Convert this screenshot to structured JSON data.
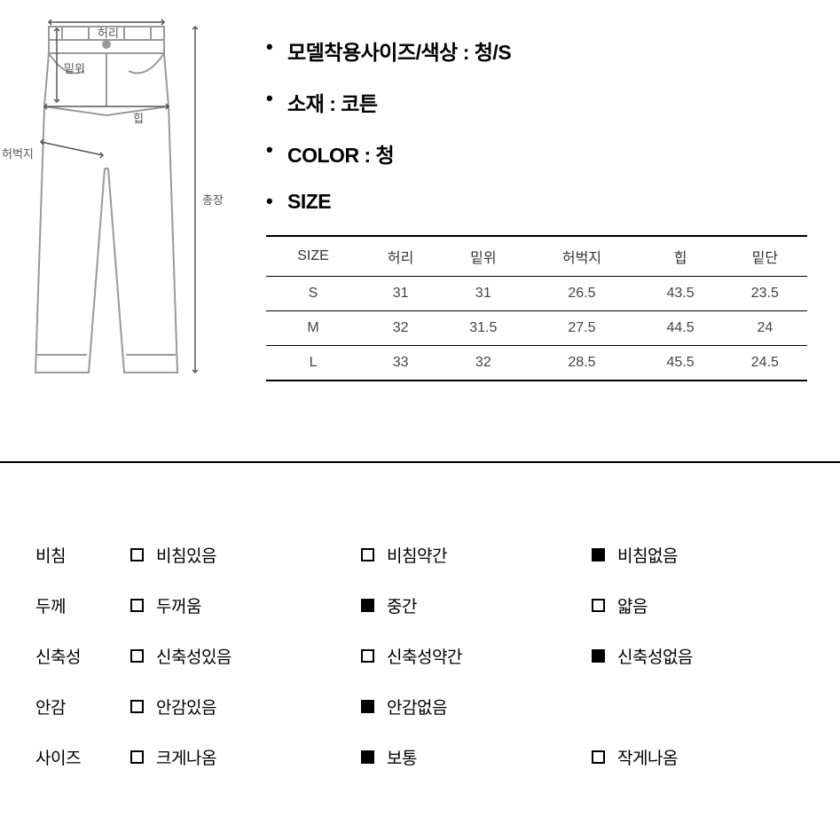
{
  "diagram": {
    "labels": {
      "waist": "허리",
      "rise": "밑위",
      "hip": "힙",
      "thigh": "허벅지",
      "length": "총장"
    },
    "stroke": "#888888",
    "arrow": "#555555"
  },
  "info": {
    "bullets": [
      "모델착용사이즈/색상 : 청/S",
      "소재 : 코튼",
      "COLOR : 청",
      "SIZE"
    ]
  },
  "sizeTable": {
    "columns": [
      "SIZE",
      "허리",
      "밑위",
      "허벅지",
      "힙",
      "밑단"
    ],
    "rows": [
      [
        "S",
        "31",
        "31",
        "26.5",
        "43.5",
        "23.5"
      ],
      [
        "M",
        "32",
        "31.5",
        "27.5",
        "44.5",
        "24"
      ],
      [
        "L",
        "33",
        "32",
        "28.5",
        "45.5",
        "24.5"
      ]
    ]
  },
  "attributes": [
    {
      "label": "비침",
      "options": [
        "비침있음",
        "비침약간",
        "비침없음"
      ],
      "selected": 2
    },
    {
      "label": "두께",
      "options": [
        "두꺼움",
        "중간",
        "얇음"
      ],
      "selected": 1
    },
    {
      "label": "신축성",
      "options": [
        "신축성있음",
        "신축성약간",
        "신축성없음"
      ],
      "selected": 2
    },
    {
      "label": "안감",
      "options": [
        "안감있음",
        "안감없음",
        ""
      ],
      "selected": 1
    },
    {
      "label": "사이즈",
      "options": [
        "크게나옴",
        "보통",
        "작게나옴"
      ],
      "selected": 1
    }
  ],
  "colors": {
    "text": "#000000",
    "bg": "#ffffff",
    "tableText": "#444444",
    "border": "#000000"
  }
}
